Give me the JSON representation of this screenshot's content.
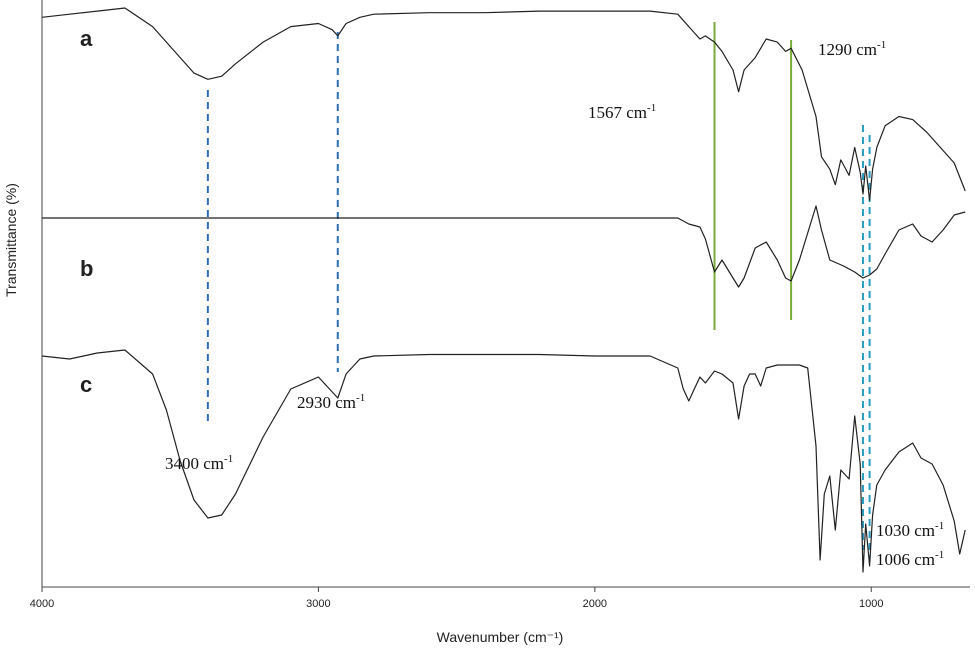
{
  "chart_data": {
    "type": "line",
    "title": "",
    "xlabel": "Wavenumber (cm⁻¹)",
    "ylabel": "Transmittance (%)",
    "xlim": [
      4000,
      650
    ],
    "x_reversed": true,
    "y_ticks_shown": false,
    "x_ticks": [
      4000,
      3000,
      2000,
      1000
    ],
    "x_tick_labels": [
      "4000",
      "3000",
      "2000",
      "1000"
    ],
    "grid": false,
    "series": [
      {
        "name": "a",
        "x": [
          4000,
          3900,
          3800,
          3700,
          3600,
          3500,
          3450,
          3400,
          3350,
          3300,
          3200,
          3100,
          3000,
          2950,
          2930,
          2900,
          2850,
          2800,
          2600,
          2400,
          2200,
          2000,
          1800,
          1700,
          1660,
          1620,
          1600,
          1567,
          1540,
          1500,
          1480,
          1460,
          1420,
          1380,
          1340,
          1310,
          1290,
          1250,
          1200,
          1180,
          1150,
          1130,
          1110,
          1080,
          1060,
          1040,
          1030,
          1020,
          1006,
          995,
          980,
          950,
          900,
          850,
          800,
          750,
          700,
          660
        ],
        "y": [
          97,
          98,
          99,
          100,
          94,
          84,
          79,
          77,
          78,
          82,
          89,
          94,
          95,
          93,
          91,
          95,
          97,
          98,
          98.5,
          98.5,
          99,
          99,
          99,
          98,
          94,
          90,
          91,
          89,
          86,
          80,
          73,
          80,
          84,
          90,
          89,
          86,
          87,
          80,
          65,
          52,
          48,
          43,
          51,
          46,
          55,
          47,
          40,
          49,
          38,
          48,
          55,
          62,
          65,
          64,
          60,
          55,
          50,
          41
        ]
      },
      {
        "name": "b",
        "x": [
          4000,
          3800,
          3600,
          3400,
          3200,
          3000,
          2800,
          2600,
          2400,
          2200,
          2000,
          1800,
          1700,
          1660,
          1620,
          1600,
          1567,
          1540,
          1500,
          1480,
          1460,
          1420,
          1380,
          1340,
          1310,
          1290,
          1260,
          1230,
          1200,
          1180,
          1150,
          1100,
          1060,
          1030,
          1006,
          980,
          950,
          900,
          850,
          820,
          780,
          740,
          700,
          660
        ],
        "y": [
          100,
          100,
          100,
          100,
          100,
          100,
          100,
          100,
          100,
          100,
          100,
          100,
          100,
          98,
          97,
          93,
          82,
          86,
          80,
          77,
          80,
          90,
          92,
          86,
          80,
          79,
          86,
          95,
          104,
          96,
          86,
          84,
          82,
          80,
          81,
          83,
          88,
          96,
          98,
          94,
          92,
          96,
          101,
          102
        ]
      },
      {
        "name": "c",
        "x": [
          4000,
          3900,
          3800,
          3700,
          3600,
          3550,
          3500,
          3450,
          3400,
          3350,
          3300,
          3200,
          3100,
          3000,
          2960,
          2930,
          2900,
          2850,
          2800,
          2600,
          2400,
          2200,
          2000,
          1800,
          1700,
          1680,
          1660,
          1640,
          1620,
          1600,
          1567,
          1540,
          1500,
          1480,
          1460,
          1440,
          1420,
          1400,
          1380,
          1340,
          1300,
          1260,
          1230,
          1200,
          1185,
          1170,
          1150,
          1130,
          1110,
          1080,
          1060,
          1040,
          1030,
          1020,
          1006,
          995,
          980,
          950,
          900,
          850,
          820,
          780,
          740,
          700,
          680,
          660
        ],
        "y": [
          98,
          97,
          99,
          100,
          92,
          80,
          63,
          50,
          44,
          45,
          52,
          71,
          87,
          91,
          87,
          84,
          92,
          97,
          98,
          98.5,
          98.5,
          98.5,
          98,
          98,
          94,
          87,
          83,
          87,
          91,
          89,
          93,
          92,
          89,
          77,
          88,
          92,
          92,
          88,
          94,
          95,
          95,
          95,
          94,
          68,
          30,
          52,
          58,
          40,
          60,
          57,
          78,
          62,
          26,
          42,
          28,
          45,
          55,
          60,
          66,
          69,
          64,
          62,
          55,
          43,
          32,
          40
        ]
      }
    ],
    "trace_labels": [
      "a",
      "b",
      "c"
    ],
    "annotations": [
      {
        "text": "3400 cm",
        "sup": "-1",
        "x": 3400,
        "line_color": "#2e6db4",
        "line_style": "dashed"
      },
      {
        "text": "2930 cm",
        "sup": "-1",
        "x": 2930,
        "line_color": "#2e6db4",
        "line_style": "dashed"
      },
      {
        "text": "1567 cm",
        "sup": "-1",
        "x": 1567,
        "line_color": "#7aac3b",
        "line_style": "solid"
      },
      {
        "text": "1290 cm",
        "sup": "-1",
        "x": 1290,
        "line_color": "#7aac3b",
        "line_style": "solid"
      },
      {
        "text": "1030  cm",
        "sup": "-1",
        "x": 1030,
        "line_color": "#2a9bc0",
        "line_style": "dashed"
      },
      {
        "text": "1006 cm",
        "sup": "-1",
        "x": 1006,
        "line_color": "#2a9bc0",
        "line_style": "dashed"
      }
    ]
  }
}
